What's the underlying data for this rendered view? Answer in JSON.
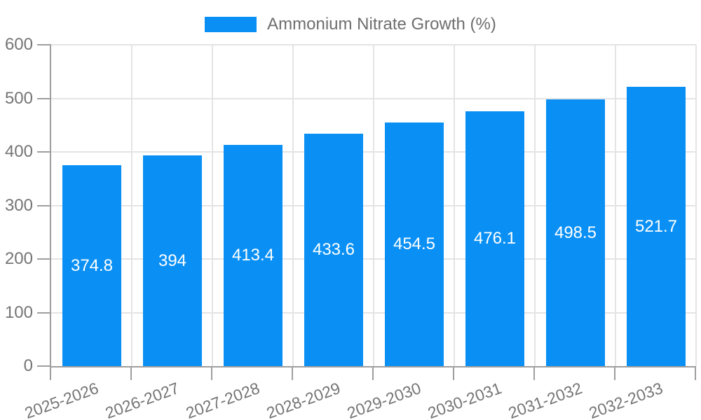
{
  "chart_data": {
    "type": "bar",
    "title": "",
    "legend": {
      "label": "Ammonium Nitrate Growth (%)",
      "position": "top"
    },
    "categories": [
      "2025-2026",
      "2026-2027",
      "2027-2028",
      "2028-2029",
      "2029-2030",
      "2030-2031",
      "2031-2032",
      "2032-2033"
    ],
    "series": [
      {
        "name": "Ammonium Nitrate Growth (%)",
        "values": [
          374.8,
          394,
          413.4,
          433.6,
          454.5,
          476.1,
          498.5,
          521.7
        ]
      }
    ],
    "value_labels": [
      "374.8",
      "394",
      "413.4",
      "433.6",
      "454.5",
      "476.1",
      "498.5",
      "521.7"
    ],
    "xlabel": "",
    "ylabel": "",
    "ylim": [
      0,
      600
    ],
    "ytick_step": 100,
    "ytick_labels": [
      "600",
      "500",
      "400",
      "300",
      "200",
      "100",
      "0"
    ],
    "grid": true,
    "x_label_rotation_deg": -20,
    "colors": {
      "bar": "#0a90f5",
      "grid": "#e4e4e4",
      "axis": "#9e9e9e",
      "tick_text": "#757575",
      "legend_text": "#6e6e6e",
      "value_label": "#ffffff",
      "background": "#ffffff"
    }
  }
}
